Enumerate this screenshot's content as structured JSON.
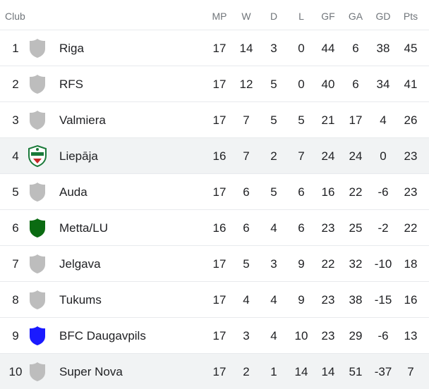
{
  "header": {
    "club": "Club",
    "mp": "MP",
    "w": "W",
    "d": "D",
    "l": "L",
    "gf": "GF",
    "ga": "GA",
    "gd": "GD",
    "pts": "Pts"
  },
  "rows": [
    {
      "rank": "1",
      "club": "Riga",
      "mp": "17",
      "w": "14",
      "d": "3",
      "l": "0",
      "gf": "44",
      "ga": "6",
      "gd": "38",
      "pts": "45",
      "badge": "shield-icon",
      "badge_color": "#bdbdbd"
    },
    {
      "rank": "2",
      "club": "RFS",
      "mp": "17",
      "w": "12",
      "d": "5",
      "l": "0",
      "gf": "40",
      "ga": "6",
      "gd": "34",
      "pts": "41",
      "badge": "shield-icon",
      "badge_color": "#bdbdbd"
    },
    {
      "rank": "3",
      "club": "Valmiera",
      "mp": "17",
      "w": "7",
      "d": "5",
      "l": "5",
      "gf": "21",
      "ga": "17",
      "gd": "4",
      "pts": "26",
      "badge": "shield-icon",
      "badge_color": "#bdbdbd"
    },
    {
      "rank": "4",
      "club": "Liepāja",
      "mp": "16",
      "w": "7",
      "d": "2",
      "l": "7",
      "gf": "24",
      "ga": "24",
      "gd": "0",
      "pts": "23",
      "badge": "liepaja-crest-icon",
      "badge_color": "#1b7a3a",
      "highlighted": true
    },
    {
      "rank": "5",
      "club": "Auda",
      "mp": "17",
      "w": "6",
      "d": "5",
      "l": "6",
      "gf": "16",
      "ga": "22",
      "gd": "-6",
      "pts": "23",
      "badge": "shield-icon",
      "badge_color": "#bdbdbd"
    },
    {
      "rank": "6",
      "club": "Metta/LU",
      "mp": "16",
      "w": "6",
      "d": "4",
      "l": "6",
      "gf": "23",
      "ga": "25",
      "gd": "-2",
      "pts": "22",
      "badge": "shield-icon",
      "badge_color": "#0b6b12"
    },
    {
      "rank": "7",
      "club": "Jelgava",
      "mp": "17",
      "w": "5",
      "d": "3",
      "l": "9",
      "gf": "22",
      "ga": "32",
      "gd": "-10",
      "pts": "18",
      "badge": "shield-icon",
      "badge_color": "#bdbdbd"
    },
    {
      "rank": "8",
      "club": "Tukums",
      "mp": "17",
      "w": "4",
      "d": "4",
      "l": "9",
      "gf": "23",
      "ga": "38",
      "gd": "-15",
      "pts": "16",
      "badge": "shield-icon",
      "badge_color": "#bdbdbd"
    },
    {
      "rank": "9",
      "club": "BFC Daugavpils",
      "mp": "17",
      "w": "3",
      "d": "4",
      "l": "10",
      "gf": "23",
      "ga": "29",
      "gd": "-6",
      "pts": "13",
      "badge": "shield-icon",
      "badge_color": "#1a1aff"
    },
    {
      "rank": "10",
      "club": "Super Nova",
      "mp": "17",
      "w": "2",
      "d": "1",
      "l": "14",
      "gf": "14",
      "ga": "51",
      "gd": "-37",
      "pts": "7",
      "badge": "shield-icon",
      "badge_color": "#bdbdbd",
      "highlighted": true
    }
  ]
}
